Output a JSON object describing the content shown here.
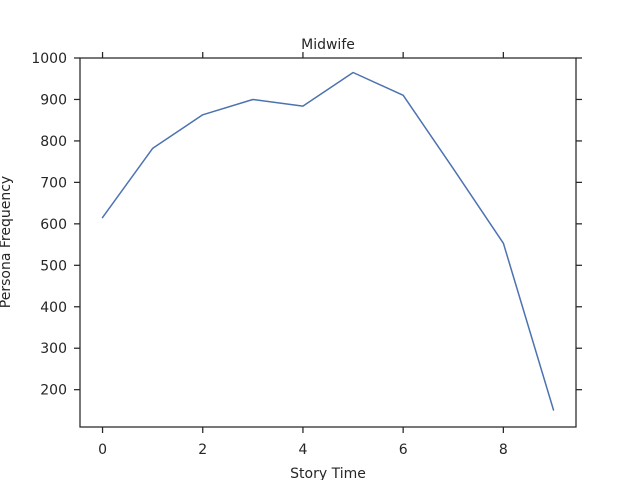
{
  "chart_data": {
    "type": "line",
    "title": "Midwife",
    "xlabel": "Story Time",
    "ylabel": "Persona Frequency",
    "xlim": [
      -0.45,
      9.45
    ],
    "ylim": [
      110,
      1000
    ],
    "x_ticks": [
      0,
      2,
      4,
      6,
      8
    ],
    "y_ticks": [
      200,
      300,
      400,
      500,
      600,
      700,
      800,
      900,
      1000
    ],
    "grid": false,
    "series": [
      {
        "color": "#4c72b0",
        "x": [
          0,
          1,
          2,
          3,
          4,
          5,
          6,
          7,
          8,
          9
        ],
        "y": [
          615,
          782,
          863,
          900,
          884,
          965,
          910,
          733,
          553,
          151
        ]
      }
    ]
  }
}
